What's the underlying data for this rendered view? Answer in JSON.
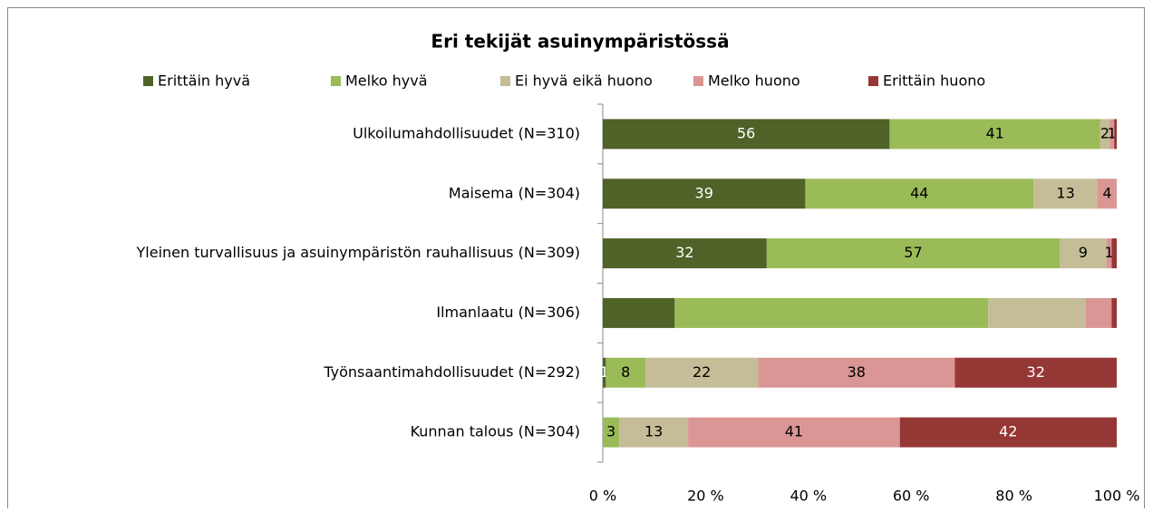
{
  "chart_data": {
    "type": "stacked_bar_horizontal",
    "title": "Eri tekijät asuinympäristössä",
    "categories": [
      "Ulkoilumahdollisuudet (N=310)",
      "Maisema (N=304)",
      "Yleinen turvallisuus ja asuinympäristön rauhallisuus (N=309)",
      "Ilmanlaatu (N=306)",
      "Työnsaantimahdollisuudet (N=292)",
      "Kunnan talous (N=304)"
    ],
    "series": [
      {
        "name": "Erittäin hyvä",
        "color": "#4f6228",
        "label_color": "#ffffff",
        "values": [
          55.8,
          39.4,
          31.9,
          14,
          0.6,
          null
        ],
        "value_labels": [
          "56",
          "39",
          "32",
          null,
          "1",
          null
        ]
      },
      {
        "name": "Melko hyvä",
        "color": "#9bbb59",
        "label_color": "#000000",
        "values": [
          41.0,
          44.4,
          57.0,
          61,
          7.7,
          3.2
        ],
        "value_labels": [
          "41",
          "44",
          "57",
          null,
          "8",
          "3"
        ]
      },
      {
        "name": "Ei hyvä eikä huono",
        "color": "#c4bd97",
        "label_color": "#000000",
        "values": [
          1.8,
          12.5,
          9.1,
          19,
          21.9,
          13.4
        ],
        "value_labels": [
          "2",
          "13",
          "9",
          null,
          "22",
          "13"
        ]
      },
      {
        "name": "Melko huono",
        "color": "#d99694",
        "label_color": "#000000",
        "values": [
          0.9,
          3.7,
          1.0,
          5,
          38.3,
          41.2
        ],
        "value_labels": [
          "1",
          "4",
          "1",
          null,
          "38",
          "41"
        ]
      },
      {
        "name": "Erittäin huono",
        "color": "#953735",
        "label_color": "#ffffff",
        "values": [
          0.5,
          null,
          1.0,
          1,
          31.5,
          42.2
        ],
        "value_labels": [
          null,
          null,
          null,
          null,
          "32",
          "42"
        ]
      }
    ],
    "xlim": [
      0,
      100
    ],
    "xticks": [
      {
        "value": 0,
        "label": "0 %"
      },
      {
        "value": 20,
        "label": "20 %"
      },
      {
        "value": 40,
        "label": "40 %"
      },
      {
        "value": 60,
        "label": "60 %"
      },
      {
        "value": 80,
        "label": "80 %"
      },
      {
        "value": 100,
        "label": "100 %"
      }
    ],
    "legend": "top"
  }
}
